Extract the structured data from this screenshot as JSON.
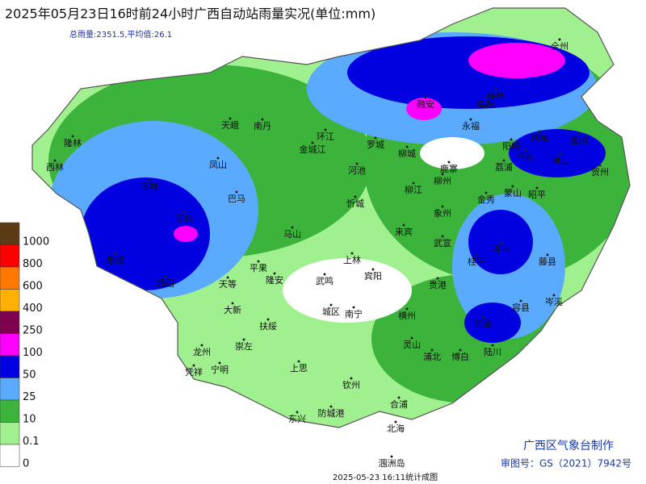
{
  "map": {
    "title": "2025年05月23日16时前24小时广西自动站雨量实况(单位:mm)",
    "subtitle": "总雨量:2351.5,平均值:26.1",
    "legend": {
      "labels": [
        "1000",
        "800",
        "600",
        "400",
        "250",
        "100",
        "50",
        "25",
        "10",
        "0.1",
        "0"
      ],
      "colors": [
        "#5c3c14",
        "#ff0000",
        "#ff7800",
        "#ffb000",
        "#800050",
        "#ff00ff",
        "#0000e0",
        "#5aaaff",
        "#3cb43c",
        "#a0f090",
        "#ffffff"
      ]
    },
    "places": [
      "隆林",
      "西林",
      "田林",
      "百色",
      "那坡",
      "靖西",
      "天等",
      "大新",
      "龙州",
      "凭祥",
      "宁明",
      "崇左",
      "扶绥",
      "上思",
      "东兴",
      "防城港",
      "钦州",
      "北海",
      "涠洲岛",
      "合浦",
      "灵山",
      "浦北",
      "博白",
      "陆川",
      "北流",
      "容县",
      "岑溪",
      "藤县",
      "桂平",
      "平南",
      "贵港",
      "横州",
      "宾阳",
      "武鸣",
      "南宁",
      "城区",
      "隆安",
      "平果",
      "马山",
      "上林",
      "来宾",
      "武宣",
      "象州",
      "金秀",
      "蒙山",
      "昭平",
      "荔浦",
      "阳朔",
      "平乐",
      "恭城",
      "富川",
      "钟山",
      "贺州",
      "鹿寨",
      "柳江",
      "柳州",
      "柳城",
      "融安",
      "永福",
      "临桂",
      "桂林",
      "全州",
      "罗城",
      "环江",
      "河池",
      "金城江",
      "南丹",
      "天峨",
      "凤山",
      "巴马",
      "忻城"
    ],
    "producer": "广西区气象台制作",
    "approval": "审图号：GS（2021）7942号",
    "timestamp": "2025-05-23 16:11统计成图"
  }
}
